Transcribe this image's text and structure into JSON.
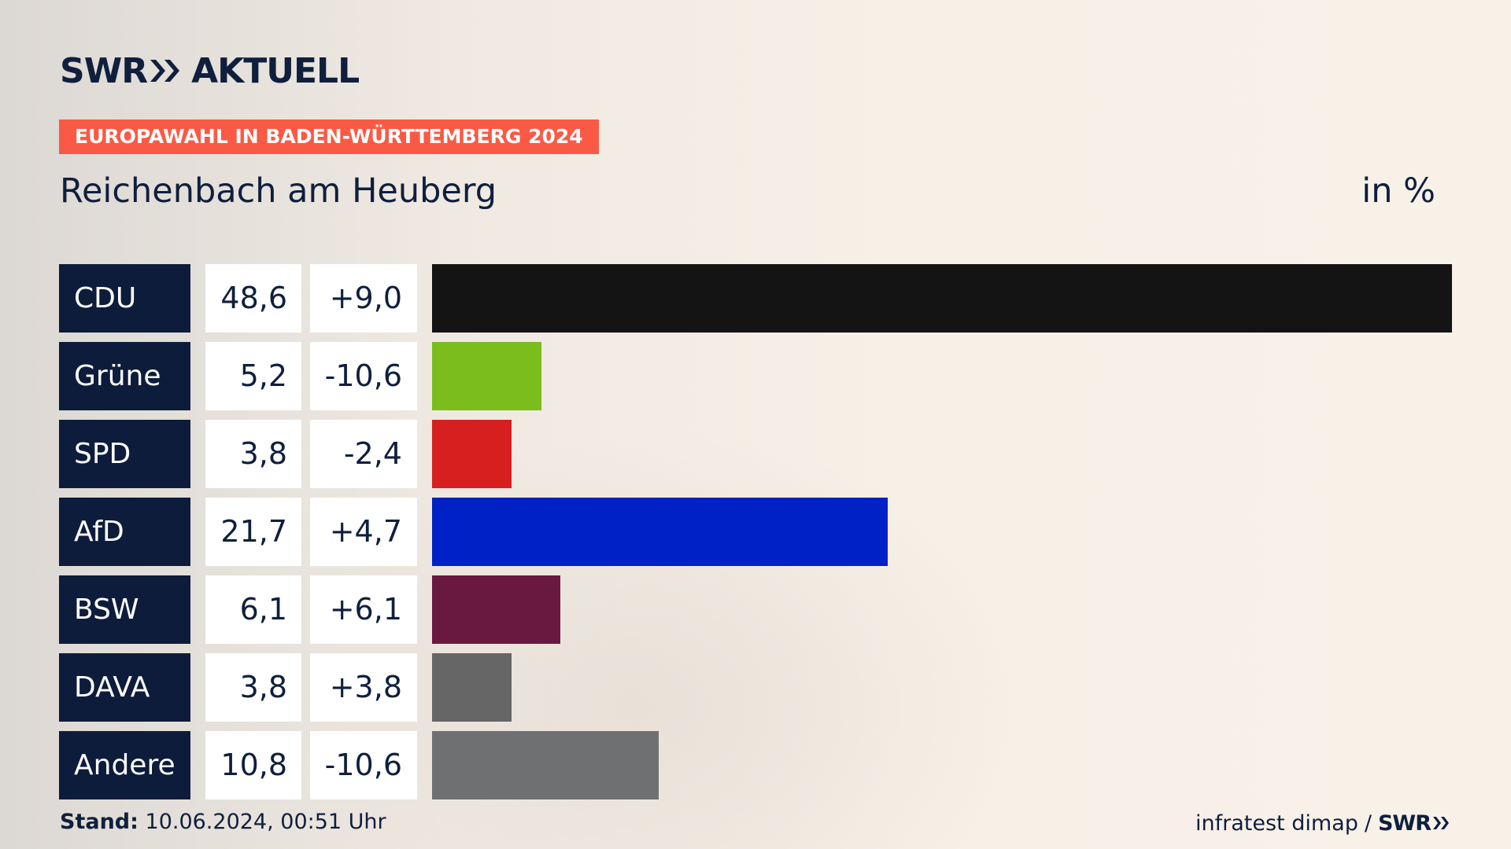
{
  "brand": {
    "logo_left": "SWR",
    "logo_right": "AKTUELL",
    "chevron_icon": "double-chevron-right-icon"
  },
  "header": {
    "kicker": "EUROPAWAHL IN BADEN-WÜRTTEMBERG 2024",
    "place": "Reichenbach am Heuberg",
    "unit": "in %"
  },
  "footer": {
    "stand_label": "Stand:",
    "stand_value": "10.06.2024, 00:51 Uhr",
    "source": "infratest dimap",
    "separator": "/",
    "source_brand": "SWR"
  },
  "colors": {
    "kicker_bg": "#fa5a45",
    "party_box": "#0e1c3c",
    "text": "#0f1f3d"
  },
  "chart_data": {
    "type": "bar",
    "orientation": "horizontal",
    "categories": [
      "CDU",
      "Grüne",
      "SPD",
      "AfD",
      "BSW",
      "DAVA",
      "Andere"
    ],
    "values": [
      48.6,
      5.2,
      3.8,
      21.7,
      6.1,
      3.8,
      10.8
    ],
    "values_label": [
      "48,6",
      "5,2",
      "3,8",
      "21,7",
      "6,1",
      "3,8",
      "10,8"
    ],
    "changes": [
      9.0,
      -10.6,
      -2.4,
      4.7,
      6.1,
      3.8,
      -10.6
    ],
    "changes_label": [
      "+9,0",
      "-10,6",
      "-2,4",
      "+4,7",
      "+6,1",
      "+3,8",
      "-10,6"
    ],
    "colors": [
      "#141414",
      "#7bbd1d",
      "#d71f1f",
      "#0021c6",
      "#69193f",
      "#666666",
      "#6f7072"
    ],
    "xlim": [
      0,
      48.6
    ],
    "grid": false
  }
}
